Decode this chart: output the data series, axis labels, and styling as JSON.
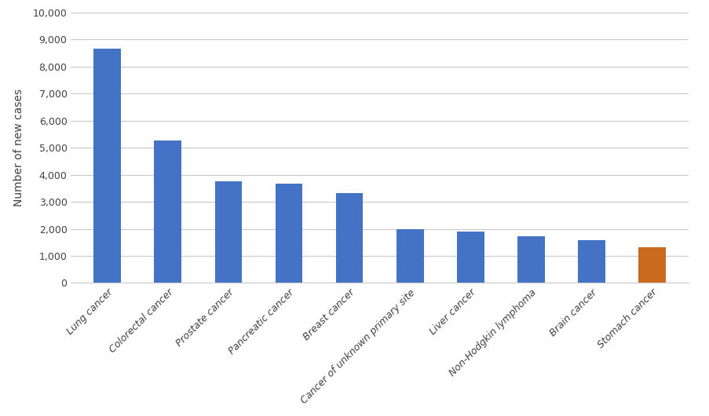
{
  "categories": [
    "Lung cancer",
    "Colorectal cancer",
    "Prostate cancer",
    "Pancreatic cancer",
    "Breast cancer",
    "Cancer of unknown primary site",
    "Liver cancer",
    "Non-Hodgkin lymphoma",
    "Brain cancer",
    "Stomach cancer"
  ],
  "values": [
    8650,
    5280,
    3750,
    3660,
    3320,
    2000,
    1910,
    1730,
    1580,
    1320
  ],
  "bar_colors": [
    "#4472C4",
    "#4472C4",
    "#4472C4",
    "#4472C4",
    "#4472C4",
    "#4472C4",
    "#4472C4",
    "#4472C4",
    "#4472C4",
    "#C96A1E"
  ],
  "ylabel": "Number of new cases",
  "ylim": [
    0,
    10000
  ],
  "yticks": [
    0,
    1000,
    2000,
    3000,
    4000,
    5000,
    6000,
    7000,
    8000,
    9000,
    10000
  ],
  "ytick_labels": [
    "0",
    "1,000",
    "2,000",
    "3,000",
    "4,000",
    "5,000",
    "6,000",
    "7,000",
    "8,000",
    "9,000",
    "10,000"
  ],
  "background_color": "#FFFFFF",
  "grid_color": "#C8C8C8",
  "bar_width": 0.45
}
